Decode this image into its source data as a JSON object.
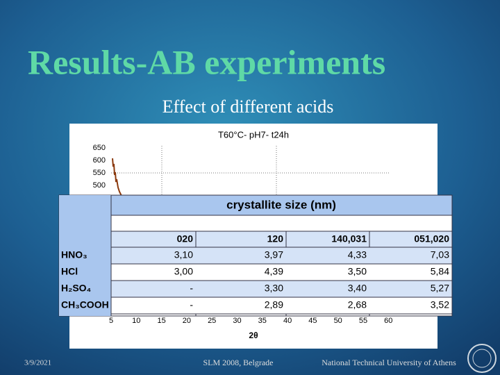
{
  "title": "Results-AB experiments",
  "subtitle": "Effect of different acids",
  "figure": {
    "title": "T60°C- pH7- t24h",
    "yticks": [
      "650",
      "600",
      "550",
      "500"
    ],
    "xticks": [
      "5",
      "10",
      "15",
      "20",
      "25",
      "30",
      "35",
      "40",
      "45",
      "50",
      "55",
      "60"
    ],
    "xlabel": "2θ"
  },
  "table": {
    "caption": "crystallite size (nm)",
    "columns": [
      "020",
      "120",
      "140,031",
      "051,020"
    ],
    "rows": [
      [
        "HNO₃",
        "3,10",
        "3,97",
        "4,33",
        "7,03"
      ],
      [
        "HCl",
        "3,00",
        "4,39",
        "3,50",
        "5,84"
      ],
      [
        "H₂SO₄",
        "-",
        "3,30",
        "3,40",
        "5,27"
      ],
      [
        "CH₃COOH",
        "-",
        "2,89",
        "2,68",
        "3,52"
      ]
    ]
  },
  "footer": {
    "date": "3/9/2021",
    "event": "SLM 2008, Belgrade",
    "institution": "National Technical University of Athens"
  }
}
